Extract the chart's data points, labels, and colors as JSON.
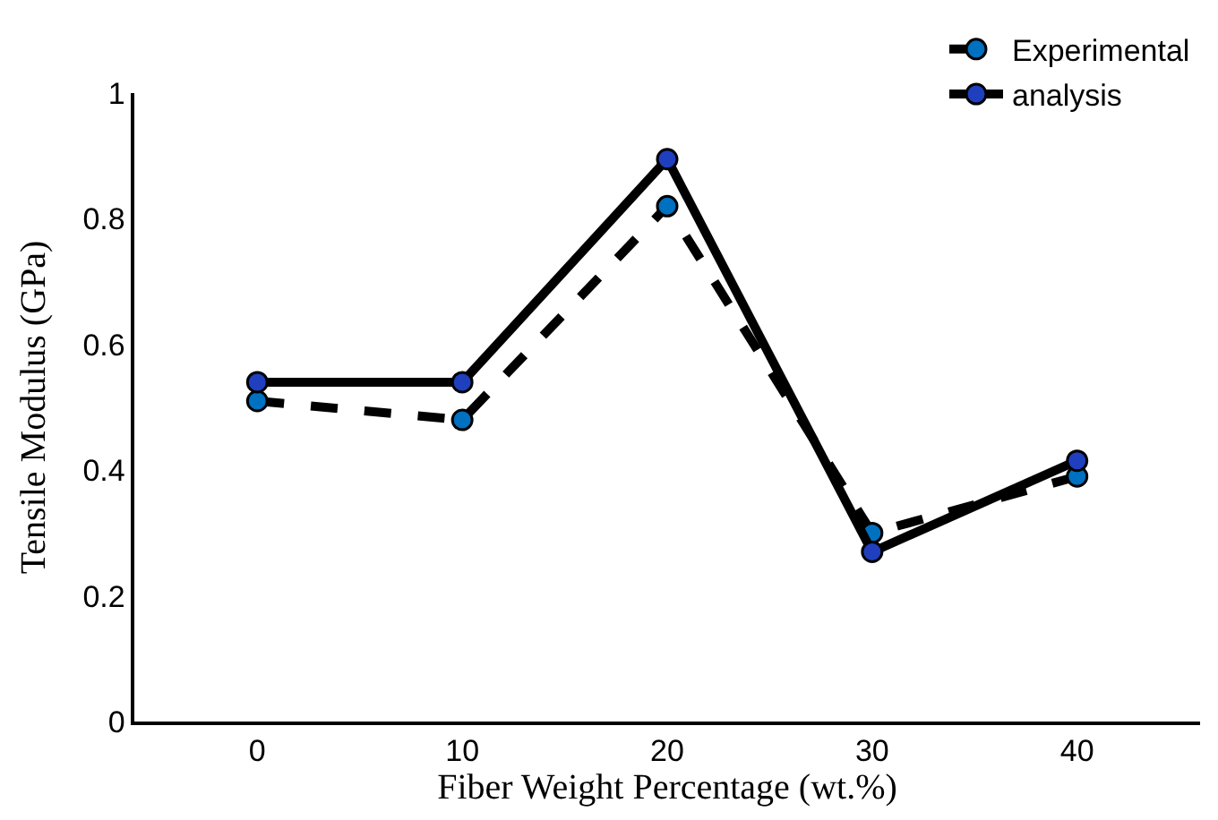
{
  "chart_data": {
    "type": "line",
    "xlabel": "Fiber Weight Percentage (wt.%)",
    "ylabel": "Tensile Modulus (GPa)",
    "categories": [
      "0",
      "10",
      "20",
      "30",
      "40"
    ],
    "series": [
      {
        "name": "Experimental",
        "color": "#0070c0",
        "values": [
          0.51,
          0.48,
          0.82,
          0.3,
          0.39
        ],
        "line_style": "dashed"
      },
      {
        "name": "analysis",
        "color": "#1f3fbf",
        "values": [
          0.54,
          0.54,
          0.895,
          0.27,
          0.415
        ],
        "line_style": "solid"
      }
    ],
    "ylim": [
      0,
      1
    ],
    "yticks": [
      0,
      0.2,
      0.4,
      0.6,
      0.8,
      1
    ],
    "legend": "top right",
    "marker": "circle"
  }
}
